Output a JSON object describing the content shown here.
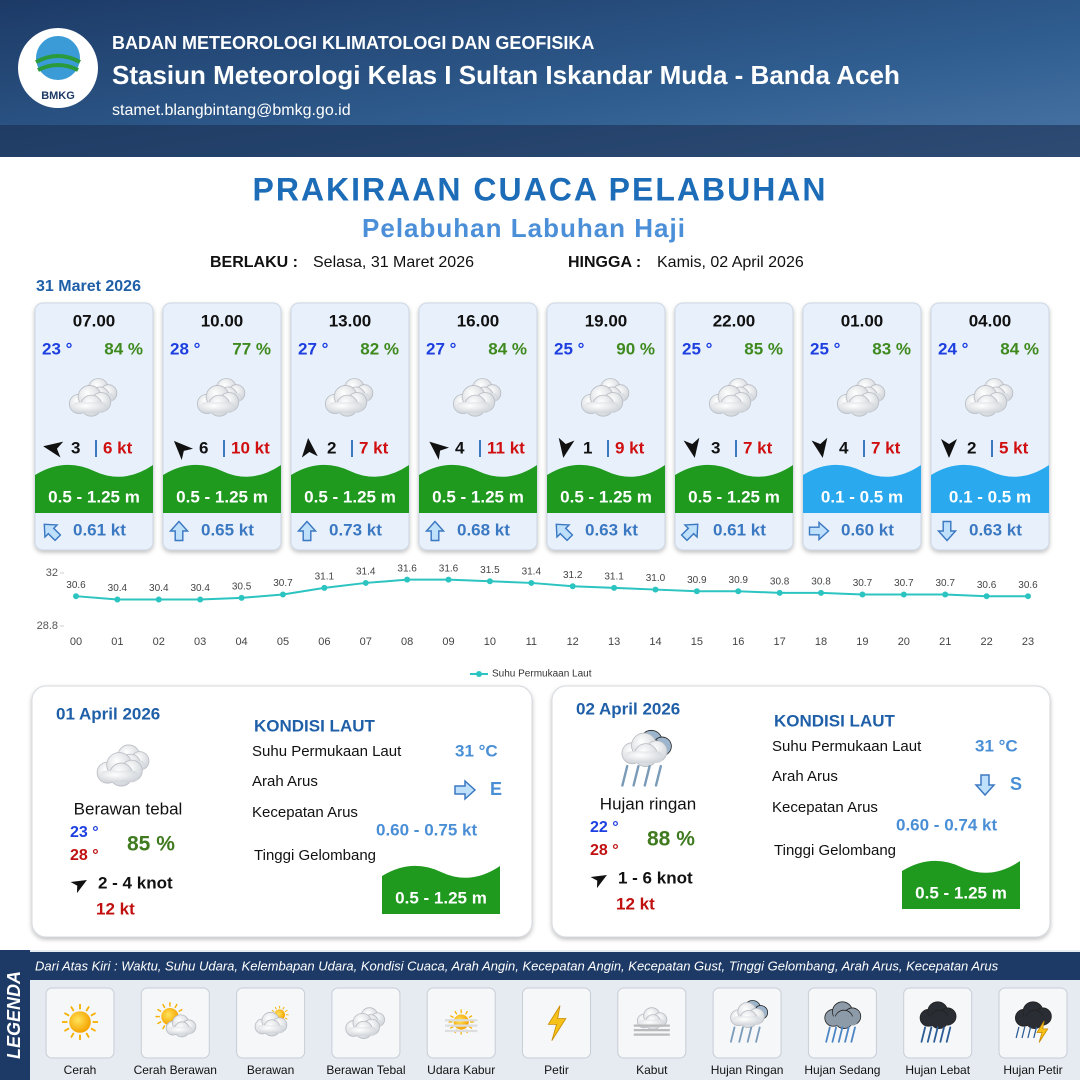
{
  "header": {
    "logo": "BMKG",
    "organization": "BADAN METEOROLOGI KLIMATOLOGI DAN GEOFISIKA",
    "station": "Stasiun Meteorologi Kelas I Sultan Iskandar Muda - Banda Aceh",
    "email": "stamet.blangbintang@bmkg.go.id"
  },
  "title": "PRAKIRAAN CUACA PELABUHAN",
  "subtitle": "Pelabuhan Labuhan Haji",
  "validity": {
    "from_label": "BERLAKU :",
    "from": "Selasa, 31 Maret 2026",
    "to_label": "HINGGA :",
    "to": "Kamis, 02 April 2026"
  },
  "day1": {
    "date": "31 Maret 2026",
    "slots": [
      {
        "time": "07.00",
        "temp": "23 °",
        "humidity": "84 %",
        "wind": "3",
        "gust": "6 kt",
        "wave": "0.5 - 1.25 m",
        "wave_color": "#1f9a1f",
        "current": "0.61 kt",
        "wind_angle": -80,
        "current_angle": -45
      },
      {
        "time": "10.00",
        "temp": "28 °",
        "humidity": "77 %",
        "wind": "6",
        "gust": "10 kt",
        "wave": "0.5 - 1.25 m",
        "wave_color": "#1f9a1f",
        "current": "0.65 kt",
        "wind_angle": -45,
        "current_angle": 0
      },
      {
        "time": "13.00",
        "temp": "27 °",
        "humidity": "82 %",
        "wind": "2",
        "gust": "7 kt",
        "wave": "0.5 - 1.25 m",
        "wave_color": "#1f9a1f",
        "current": "0.73 kt",
        "wind_angle": -5,
        "current_angle": 0
      },
      {
        "time": "16.00",
        "temp": "27 °",
        "humidity": "84 %",
        "wind": "4",
        "gust": "11 kt",
        "wave": "0.5 - 1.25 m",
        "wave_color": "#1f9a1f",
        "current": "0.68 kt",
        "wind_angle": -50,
        "current_angle": 0
      },
      {
        "time": "19.00",
        "temp": "25 °",
        "humidity": "90 %",
        "wind": "1",
        "gust": "9 kt",
        "wave": "0.5 - 1.25 m",
        "wave_color": "#1f9a1f",
        "current": "0.63 kt",
        "wind_angle": 190,
        "current_angle": -45
      },
      {
        "time": "22.00",
        "temp": "25 °",
        "humidity": "85 %",
        "wind": "3",
        "gust": "7 kt",
        "wave": "0.5 - 1.25 m",
        "wave_color": "#1f9a1f",
        "current": "0.61 kt",
        "wind_angle": 170,
        "current_angle": 45
      },
      {
        "time": "01.00",
        "temp": "25 °",
        "humidity": "83 %",
        "wind": "4",
        "gust": "7 kt",
        "wave": "0.1 - 0.5 m",
        "wave_color": "#2aa9ef",
        "current": "0.60 kt",
        "wind_angle": 170,
        "current_angle": 90
      },
      {
        "time": "04.00",
        "temp": "24 °",
        "humidity": "84 %",
        "wind": "2",
        "gust": "5 kt",
        "wave": "0.1 - 0.5 m",
        "wave_color": "#2aa9ef",
        "current": "0.63 kt",
        "wind_angle": 180,
        "current_angle": 180
      }
    ]
  },
  "chart_data": {
    "type": "line",
    "categories": [
      "00",
      "01",
      "02",
      "03",
      "04",
      "05",
      "06",
      "07",
      "08",
      "09",
      "10",
      "11",
      "12",
      "13",
      "14",
      "15",
      "16",
      "17",
      "18",
      "19",
      "20",
      "21",
      "22",
      "23"
    ],
    "series": [
      {
        "name": "Suhu Permukaan Laut",
        "color": "#2bc4c0",
        "values": [
          30.6,
          30.4,
          30.4,
          30.4,
          30.5,
          30.7,
          31.1,
          31.4,
          31.6,
          31.6,
          31.5,
          31.4,
          31.2,
          31.1,
          31.0,
          30.9,
          30.9,
          30.8,
          30.8,
          30.7,
          30.7,
          30.7,
          30.6,
          30.6
        ],
        "value_labels": [
          "30.6",
          "30.4",
          "30.4",
          "30.4",
          "30.5",
          "30.7",
          "31.1",
          "31.4",
          "31.6",
          "31.6",
          "31.5",
          "31.4",
          "31.2",
          "31.1",
          "31.0",
          "30.9",
          "30.9",
          "30.8",
          "30.8",
          "30.7",
          "30.7",
          "30.7",
          "30.6",
          "30.6"
        ]
      }
    ],
    "ylim": [
      28.8,
      32
    ],
    "yticks": [
      28.8,
      32
    ],
    "legend": "bottom"
  },
  "days": [
    {
      "date": "01 April 2026",
      "icon": "cloud-thick",
      "weather": "Berawan tebal",
      "temp_min": "23 °",
      "temp_max": "28 °",
      "humidity": "85 %",
      "wind": "2  - 4 knot",
      "gust": "12 kt",
      "sea_title": "KONDISI LAUT",
      "sst_label": "Suhu Permukaan Laut",
      "sst": "31 °C",
      "current_dir_label": "Arah Arus",
      "current_dir": "E",
      "current_angle": 90,
      "current_speed_label": "Kecepatan Arus",
      "current_speed": "0.60  - 0.75 kt",
      "wave_label": "Tinggi Gelombang",
      "wave": "0.5 - 1.25 m"
    },
    {
      "date": "02 April 2026",
      "icon": "rain-light",
      "weather": "Hujan ringan",
      "temp_min": "22 °",
      "temp_max": "28 °",
      "humidity": "88 %",
      "wind": "1  - 6 knot",
      "gust": "12 kt",
      "sea_title": "KONDISI LAUT",
      "sst_label": "Suhu Permukaan Laut",
      "sst": "31 °C",
      "current_dir_label": "Arah Arus",
      "current_dir": "S",
      "current_angle": 180,
      "current_speed_label": "Kecepatan Arus",
      "current_speed": "0.60  - 0.74 kt",
      "wave_label": "Tinggi Gelombang",
      "wave": "0.5 - 1.25 m"
    }
  ],
  "legend": {
    "title": "LEGENDA",
    "description": "Dari Atas Kiri : Waktu, Suhu Udara, Kelembapan Udara, Kondisi Cuaca, Arah Angin, Kecepatan Angin, Kecepatan Gust, Tinggi Gelombang, Arah Arus, Kecepatan Arus",
    "items": [
      {
        "label": "Cerah",
        "icon": "sun"
      },
      {
        "label": "Cerah Berawan",
        "icon": "sun-cloud"
      },
      {
        "label": "Berawan",
        "icon": "cloud"
      },
      {
        "label": "Berawan Tebal",
        "icon": "cloud-thick"
      },
      {
        "label": "Udara Kabur",
        "icon": "haze"
      },
      {
        "label": "Petir",
        "icon": "thunder"
      },
      {
        "label": "Kabut",
        "icon": "fog"
      },
      {
        "label": "Hujan Ringan",
        "icon": "rain-light"
      },
      {
        "label": "Hujan Sedang",
        "icon": "rain-medium"
      },
      {
        "label": "Hujan Lebat",
        "icon": "rain-heavy"
      },
      {
        "label": "Hujan Petir",
        "icon": "rain-thunder"
      }
    ]
  }
}
